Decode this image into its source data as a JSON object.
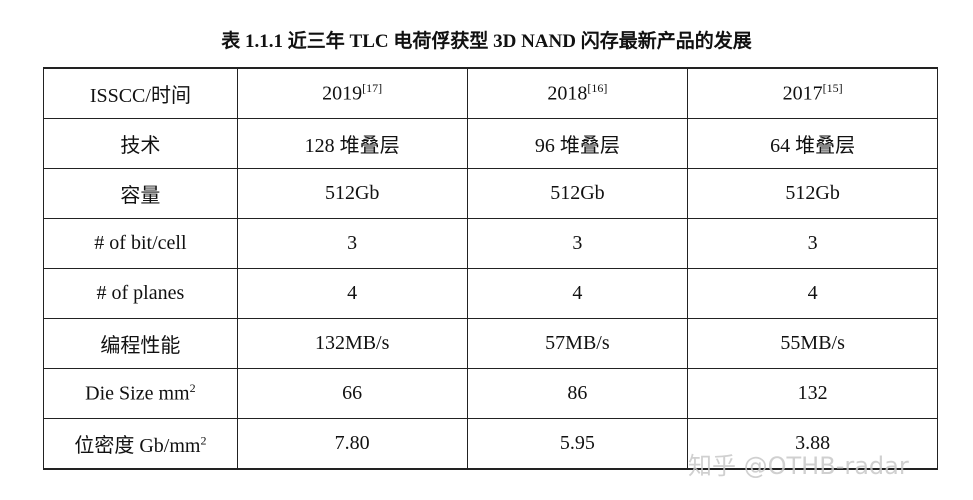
{
  "title": "表 1.1.1 近三年 TLC 电荷俘获型 3D NAND 闪存最新产品的发展",
  "table": {
    "header": [
      {
        "text": "ISSCC/时间"
      },
      {
        "text": "2019",
        "sup": "[17]"
      },
      {
        "text": "2018",
        "sup": "[16]"
      },
      {
        "text": "2017",
        "sup": "[15]"
      }
    ],
    "rows": [
      [
        {
          "text": "技术"
        },
        {
          "text": "128 堆叠层"
        },
        {
          "text": "96 堆叠层"
        },
        {
          "text": "64 堆叠层"
        }
      ],
      [
        {
          "text": "容量"
        },
        {
          "text": "512Gb"
        },
        {
          "text": "512Gb"
        },
        {
          "text": "512Gb"
        }
      ],
      [
        {
          "text": "# of bit/cell"
        },
        {
          "text": "3"
        },
        {
          "text": "3"
        },
        {
          "text": "3"
        }
      ],
      [
        {
          "text": "# of planes"
        },
        {
          "text": "4"
        },
        {
          "text": "4"
        },
        {
          "text": "4"
        }
      ],
      [
        {
          "text": "编程性能"
        },
        {
          "text": "132MB/s"
        },
        {
          "text": "57MB/s"
        },
        {
          "text": "55MB/s"
        }
      ],
      [
        {
          "text": "Die Size mm",
          "sup": "2"
        },
        {
          "text": "66"
        },
        {
          "text": "86"
        },
        {
          "text": "132"
        }
      ],
      [
        {
          "text": "位密度  Gb/mm",
          "sup": "2"
        },
        {
          "text": "7.80"
        },
        {
          "text": "5.95"
        },
        {
          "text": "3.88"
        }
      ]
    ]
  },
  "watermark": "知乎 @OTHB-radar"
}
